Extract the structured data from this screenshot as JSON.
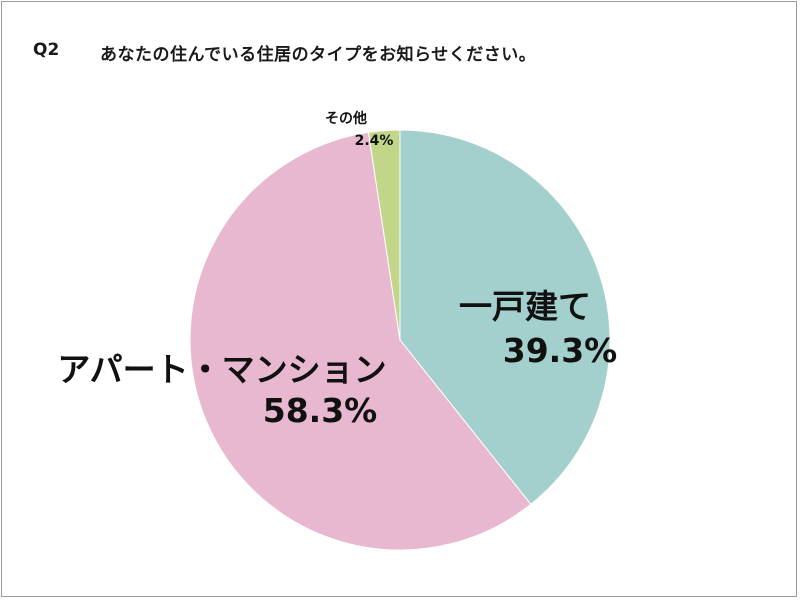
{
  "question": {
    "number": "Q2",
    "text": "あなたの住んでいる住居のタイプをお知らせください。"
  },
  "chart_data": {
    "type": "pie",
    "start": "12 o'clock, clockwise",
    "slices": [
      {
        "label": "一戸建て",
        "value": 39.3,
        "display": "39.3%",
        "color": "#a3cfcd"
      },
      {
        "label": "アパート・マンション",
        "value": 58.3,
        "display": "58.3%",
        "color": "#e8b7d0"
      },
      {
        "label": "その他",
        "value": 2.4,
        "display": "2.4%",
        "color": "#c2d68a"
      }
    ]
  }
}
